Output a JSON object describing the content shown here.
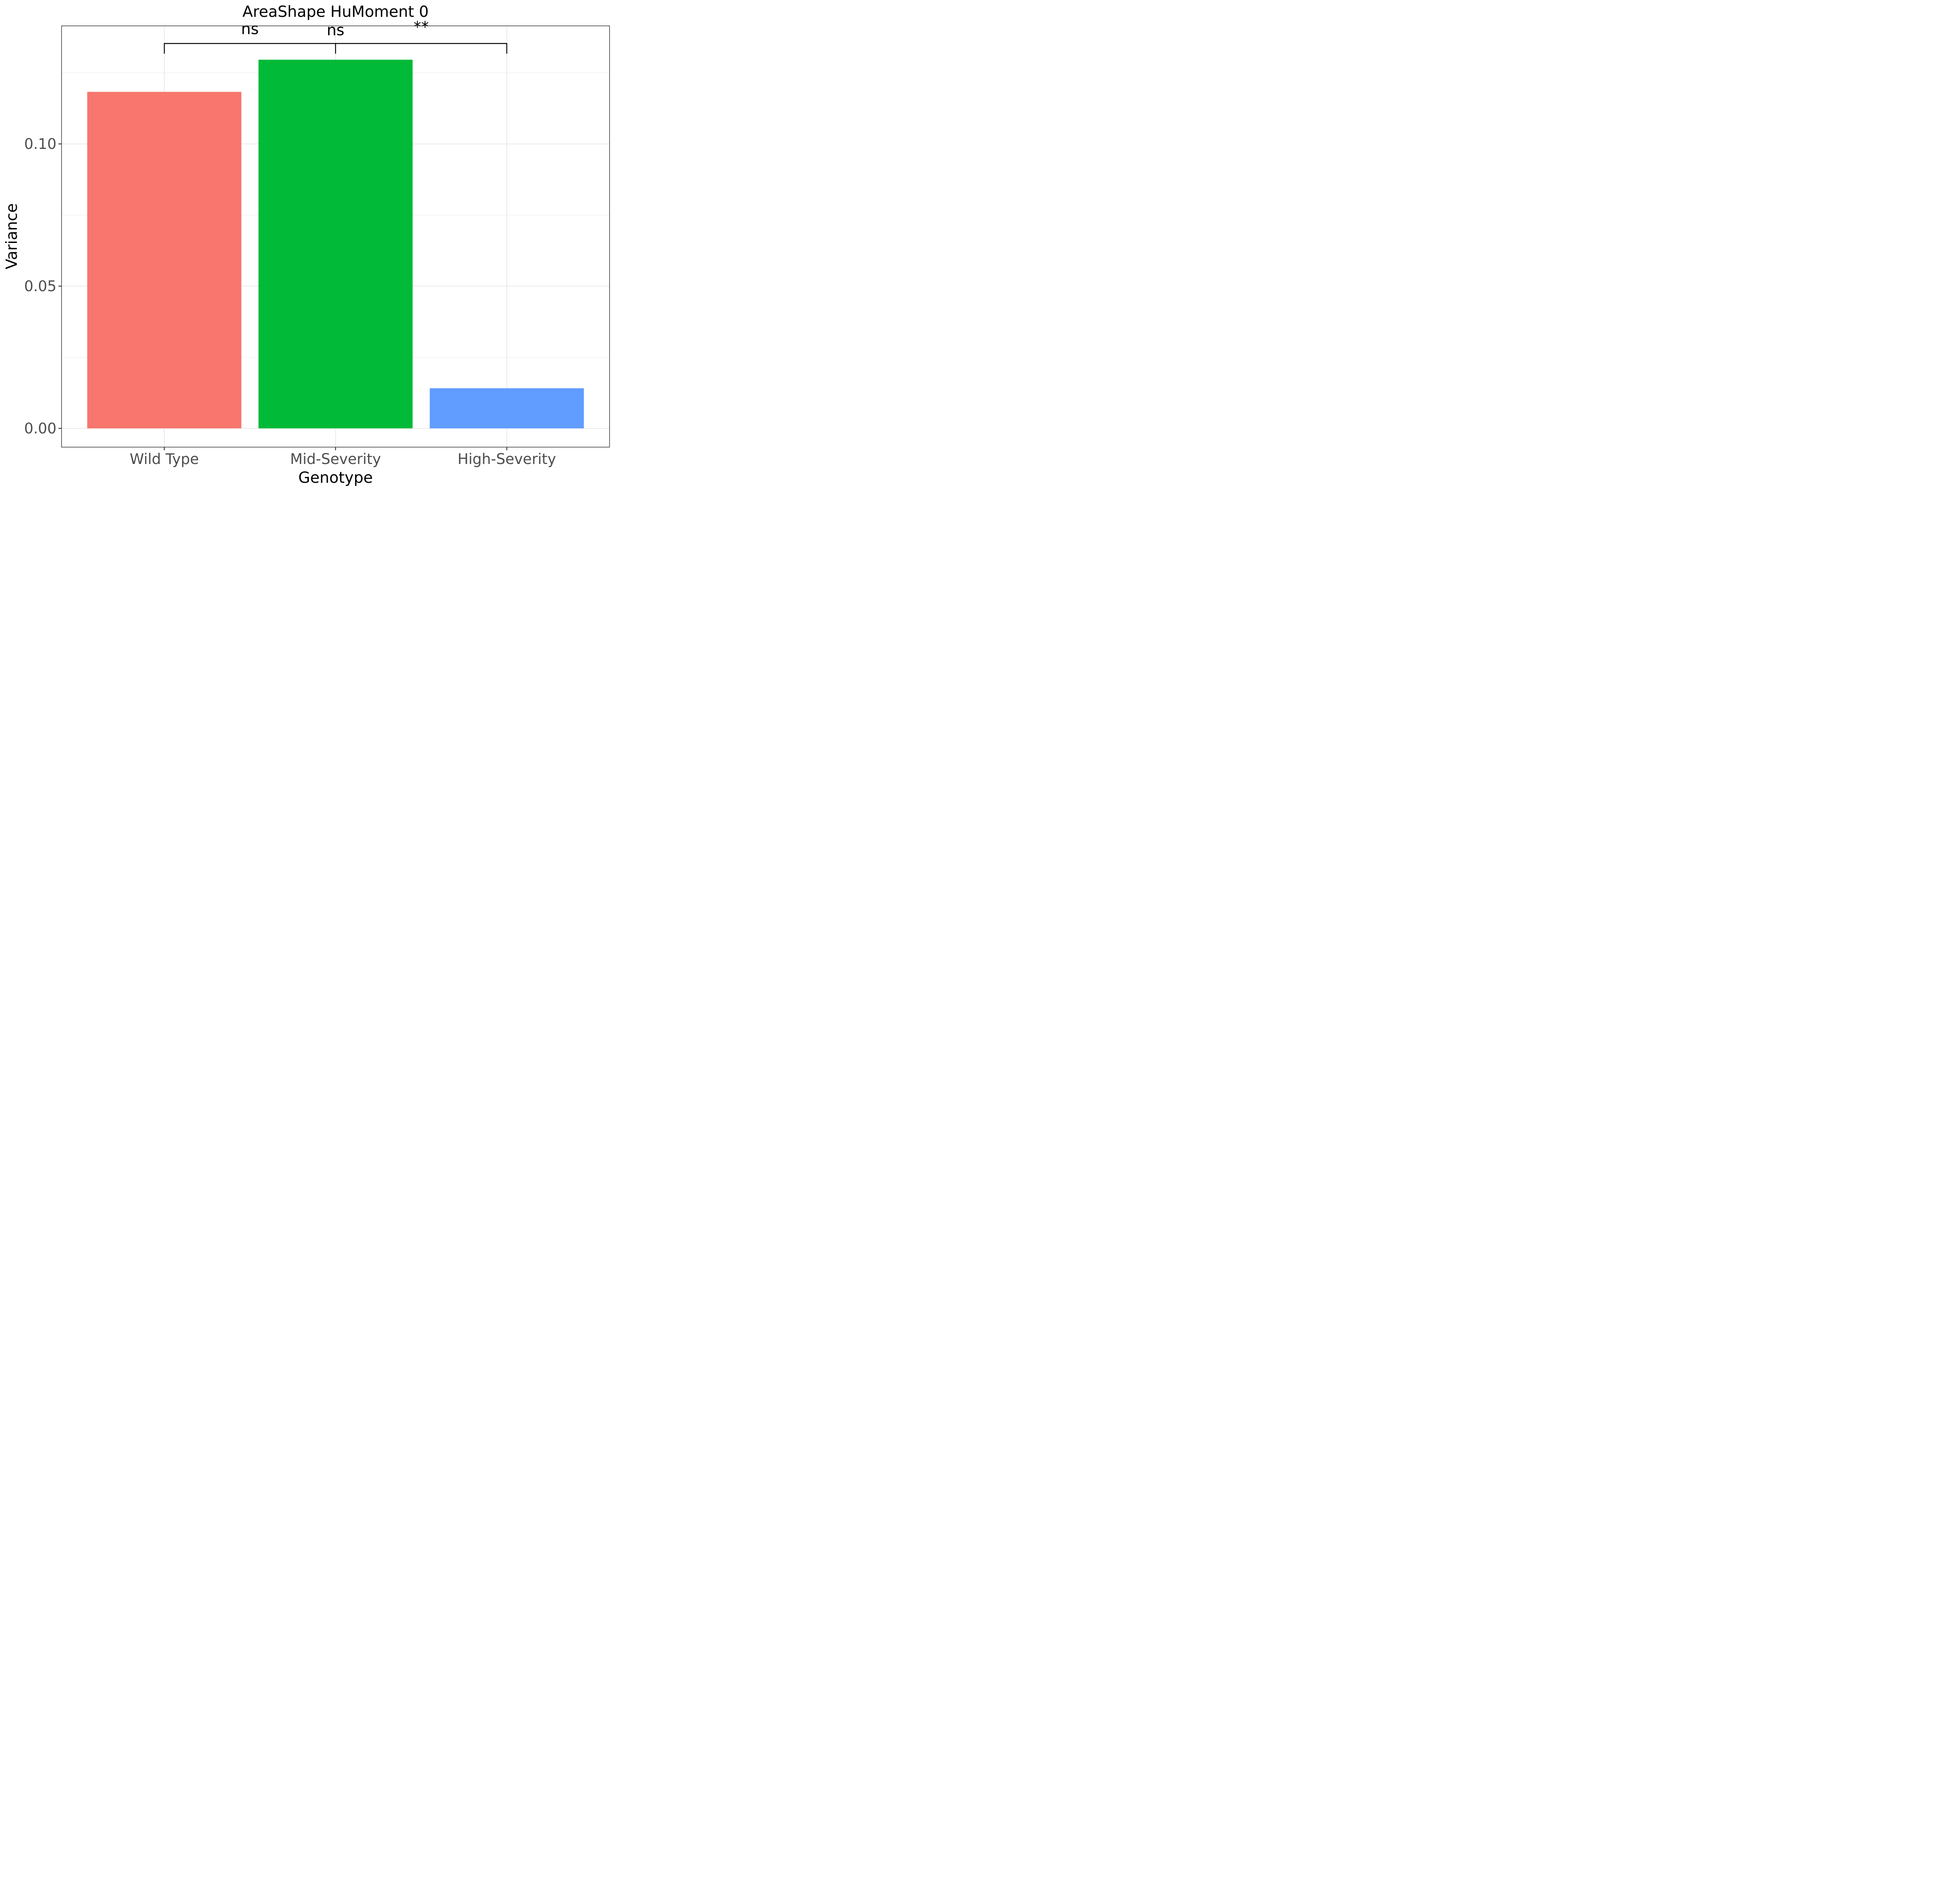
{
  "chart_data": {
    "type": "bar",
    "title": "AreaShape HuMoment 0",
    "xlabel": "Genotype",
    "ylabel": "Variance",
    "categories": [
      "Wild Type",
      "Mid-Severity",
      "High-Severity"
    ],
    "values": [
      0.1183,
      0.1296,
      0.0141
    ],
    "colors": [
      "#F8766D",
      "#00BA38",
      "#619CFF"
    ],
    "ylim": [
      -0.0066,
      0.1415
    ],
    "yticks": [
      0.0,
      0.05,
      0.1
    ],
    "ytick_labels": [
      "0.00",
      "0.05",
      "0.10"
    ],
    "grid": true,
    "legend": "none",
    "significance": [
      {
        "from": 0,
        "to": 1,
        "label": "ns"
      },
      {
        "from": 0,
        "to": 2,
        "label": "ns"
      },
      {
        "from": 1,
        "to": 2,
        "label": "**"
      }
    ],
    "bracket_y": 0.1353
  }
}
